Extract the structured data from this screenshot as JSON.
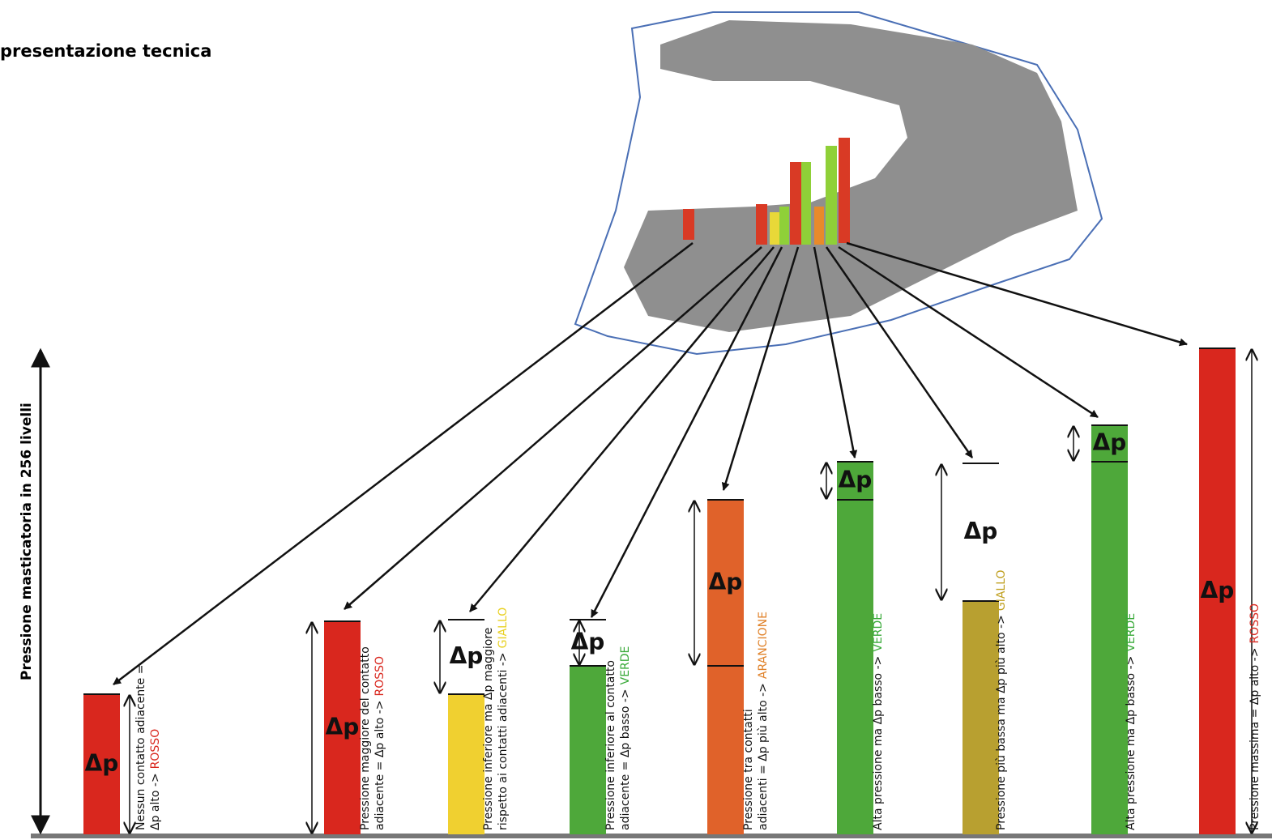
{
  "title": "presentazione tecnica",
  "axis_label": "Pressione masticatoria in 256 livelli",
  "delta_label": "Δp",
  "bars": [
    {
      "lines": [
        "Nessun contatto adiacente =",
        "Δp alto ->"
      ],
      "word": "ROSSO"
    },
    {
      "lines": [
        "Pressione maggiore del contatto",
        "adiacente = Δp alto ->"
      ],
      "word": "ROSSO"
    },
    {
      "lines": [
        "Pressione inferiore ma Δp maggiore",
        "rispetto ai contatti adiacenti ->"
      ],
      "word": "GIALLO"
    },
    {
      "lines": [
        "Pressione inferiore al contatto",
        "adiacente = Δp basso ->"
      ],
      "word": "VERDE"
    },
    {
      "lines": [
        "Pressione tra contatti",
        "adiacenti = Δp più alto ->"
      ],
      "word": "ARANCIONE"
    },
    {
      "lines": [
        "Alta pressione ma Δp basso ->"
      ],
      "word": "VERDE"
    },
    {
      "lines": [
        "Pressione più bassa ma Δp più alto ->"
      ],
      "word": "GIALLO"
    },
    {
      "lines": [
        "Alta pressione ma Δp basso ->"
      ],
      "word": "VERDE"
    },
    {
      "lines": [
        "Pressione massima = Δp alto ->"
      ],
      "word": "ROSSO"
    }
  ]
}
